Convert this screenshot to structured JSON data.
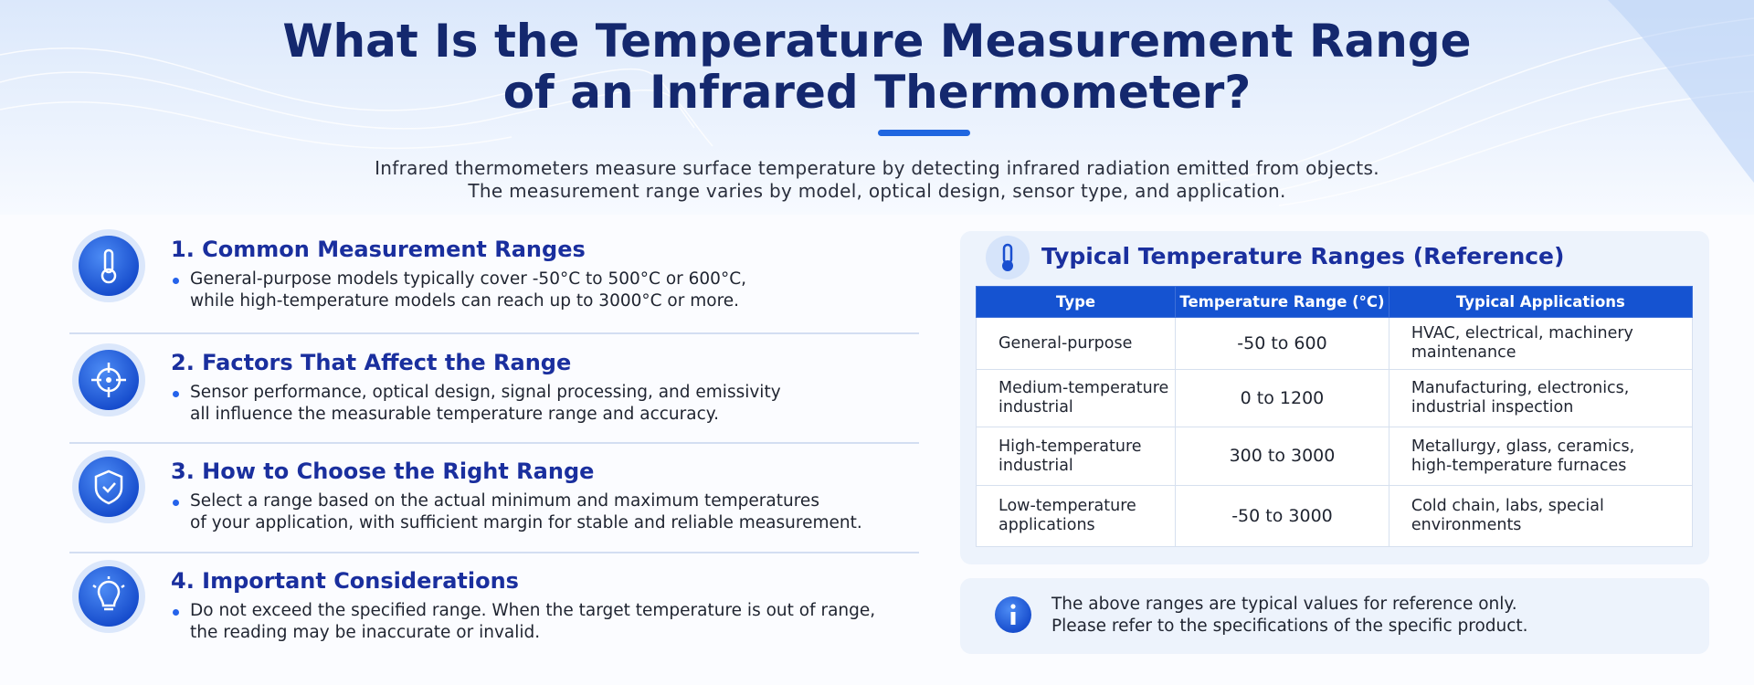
{
  "header": {
    "title": [
      "What Is the Temperature Measurement Range",
      "of an Infrared Thermometer?"
    ],
    "subtitle": [
      "Infrared thermometers measure surface temperature by detecting infrared radiation emitted from objects.",
      "The measurement range varies by model, optical design, sensor type, and application."
    ]
  },
  "sections": [
    {
      "title": "1. Common Measurement Ranges",
      "lines": [
        "General-purpose models typically cover -50°C to 500°C or 600°C,",
        "while high-temperature models can reach up to 3000°C or more."
      ]
    },
    {
      "title": "2. Factors That Affect the Range",
      "lines": [
        "Sensor performance, optical design, signal processing, and emissivity",
        "all influence the measurable temperature range and accuracy."
      ]
    },
    {
      "title": "3. How to Choose the Right Range",
      "lines": [
        "Select a range based on the actual minimum and maximum temperatures",
        "of your application, with sufficient margin for stable and reliable measurement."
      ]
    },
    {
      "title": "4. Important Considerations",
      "lines": [
        "Do not exceed the specified range. When the target temperature is out of range,",
        "the reading may be inaccurate or invalid."
      ]
    }
  ],
  "reference": {
    "title": "Typical Temperature Ranges (Reference)",
    "table": {
      "columns": [
        "Type",
        "Temperature Range (°C)",
        "Typical Applications"
      ],
      "rows": [
        [
          [
            "General-purpose"
          ],
          [
            "-50 to 600"
          ],
          [
            "HVAC, electrical, machinery",
            "maintenance"
          ]
        ],
        [
          [
            "Medium-temperature",
            "industrial"
          ],
          [
            "0 to 1200"
          ],
          [
            "Manufacturing, electronics,",
            "industrial inspection"
          ]
        ],
        [
          [
            "High-temperature",
            "industrial"
          ],
          [
            "300 to 3000"
          ],
          [
            "Metallurgy, glass, ceramics,",
            "high-temperature furnaces"
          ]
        ],
        [
          [
            "Low-temperature",
            "applications"
          ],
          [
            "-50 to 3000"
          ],
          [
            "Cold chain, labs, special",
            "environments"
          ]
        ]
      ]
    }
  },
  "note": [
    "The above ranges are typical values for reference only.",
    "Please refer to the specifications of the specific product."
  ]
}
